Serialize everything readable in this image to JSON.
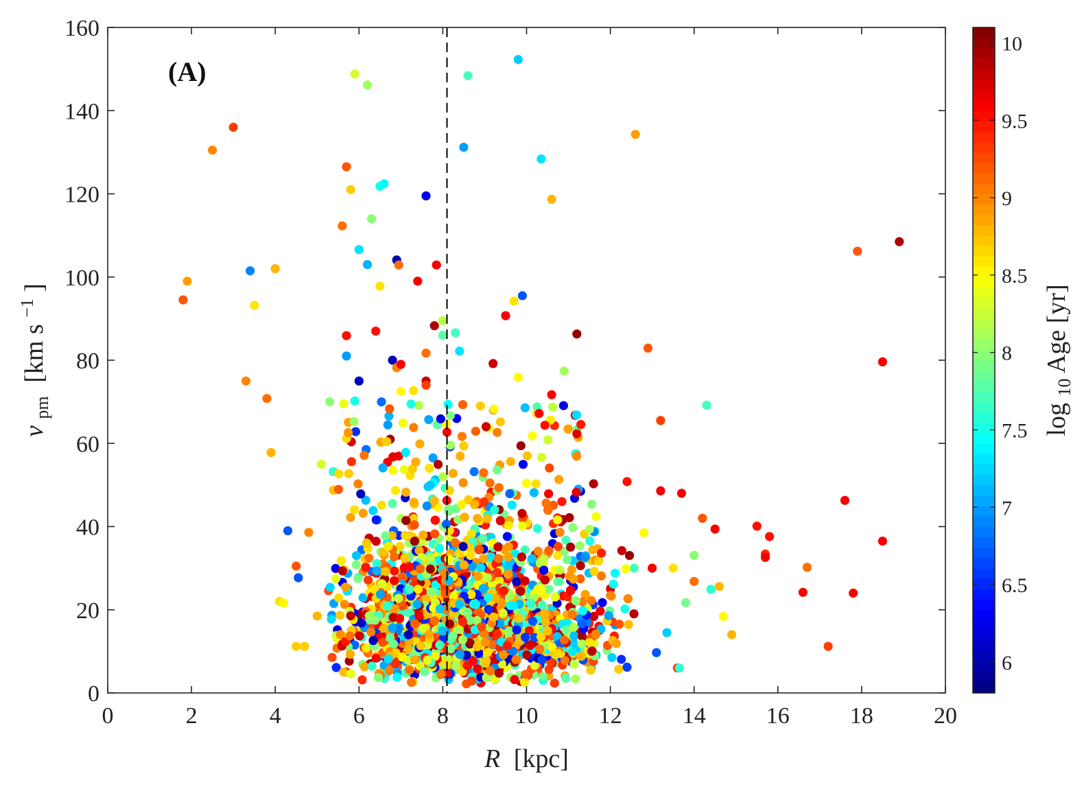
{
  "chart_data": {
    "type": "scatter",
    "panel_label": "(A)",
    "xlabel": {
      "symbol": "R",
      "unit": "[kpc]"
    },
    "ylabel": {
      "symbol": "v",
      "subscript": "pm",
      "unit": "[km s",
      "superscript": "−1",
      "close": "]"
    },
    "colorbar_label": {
      "prefix": "log",
      "subscript": "10",
      "rest": "Age [yr]"
    },
    "xlim": [
      0,
      20
    ],
    "ylim": [
      0,
      160
    ],
    "clim": [
      5.8,
      10.1
    ],
    "xticks": [
      "0",
      "2",
      "4",
      "6",
      "8",
      "10",
      "12",
      "14",
      "16",
      "18",
      "20"
    ],
    "yticks": [
      "0",
      "20",
      "40",
      "60",
      "80",
      "100",
      "120",
      "140",
      "160"
    ],
    "cticks": [
      "6",
      "6.5",
      "7",
      "7.5",
      "8",
      "8.5",
      "9",
      "9.5",
      "10"
    ],
    "reference_line": {
      "x": 8.1,
      "style": "dashed",
      "color": "#000000"
    },
    "colormap": "jet",
    "marker_note": "filled circles colored by log10 Age",
    "points_outliers": [
      [
        1.8,
        94.5,
        9.2
      ],
      [
        1.9,
        99,
        8.9
      ],
      [
        2.5,
        130.5,
        9.0
      ],
      [
        3.0,
        136,
        9.3
      ],
      [
        3.3,
        75,
        9.0
      ],
      [
        3.4,
        101.5,
        6.9
      ],
      [
        3.5,
        93.2,
        8.6
      ],
      [
        3.8,
        70.8,
        9.1
      ],
      [
        3.9,
        57.8,
        8.8
      ],
      [
        4.0,
        102,
        8.8
      ],
      [
        4.3,
        39,
        6.7
      ],
      [
        4.5,
        30.5,
        9.2
      ],
      [
        4.5,
        11.2,
        8.7
      ],
      [
        4.55,
        27.7,
        6.7
      ],
      [
        4.1,
        22,
        8.6
      ],
      [
        4.2,
        21.6,
        8.5
      ],
      [
        4.7,
        11.2,
        8.7
      ],
      [
        4.8,
        38.6,
        9.0
      ],
      [
        5.0,
        18.5,
        8.8
      ],
      [
        5.1,
        55,
        8.3
      ],
      [
        5.3,
        70,
        8.0
      ],
      [
        5.7,
        126.5,
        9.2
      ],
      [
        5.8,
        121,
        8.7
      ],
      [
        5.9,
        148.8,
        8.3
      ],
      [
        6.2,
        146.2,
        8.1
      ],
      [
        6.0,
        106.6,
        7.3
      ],
      [
        6.2,
        103,
        7.1
      ],
      [
        6.3,
        114,
        8.0
      ],
      [
        6.5,
        121.8,
        7.5
      ],
      [
        6.6,
        122.4,
        7.4
      ],
      [
        6.5,
        97.8,
        8.6
      ],
      [
        5.6,
        112.3,
        9.1
      ],
      [
        5.7,
        85.9,
        9.5
      ],
      [
        5.7,
        81,
        7.0
      ],
      [
        5.9,
        70.2,
        7.5
      ],
      [
        6.0,
        75,
        6.1
      ],
      [
        6.4,
        87,
        9.5
      ],
      [
        6.8,
        80,
        6.0
      ],
      [
        6.9,
        104.1,
        6.0
      ],
      [
        6.95,
        102.9,
        9.1
      ],
      [
        6.9,
        78.2,
        9.0
      ],
      [
        7.0,
        79,
        9.6
      ],
      [
        7.0,
        72.5,
        8.5
      ],
      [
        7.3,
        72.7,
        8.6
      ],
      [
        7.4,
        99,
        9.6
      ],
      [
        7.6,
        119.5,
        6.3
      ],
      [
        7.6,
        75,
        9.8
      ],
      [
        7.6,
        74,
        9.3
      ],
      [
        7.6,
        81.7,
        9.1
      ],
      [
        7.8,
        88.3,
        9.9
      ],
      [
        7.85,
        102.9,
        9.6
      ],
      [
        8.0,
        89.5,
        8.2
      ],
      [
        8.0,
        86,
        7.8
      ],
      [
        7.95,
        65.9,
        6.2
      ],
      [
        8.1,
        62.7,
        9.6
      ],
      [
        8.3,
        86.6,
        7.7
      ],
      [
        8.4,
        82.2,
        7.3
      ],
      [
        8.5,
        131.2,
        7.0
      ],
      [
        8.6,
        148.4,
        7.7
      ],
      [
        8.9,
        69,
        8.7
      ],
      [
        9.2,
        79.2,
        9.8
      ],
      [
        9.5,
        90.7,
        9.6
      ],
      [
        9.7,
        94.2,
        8.6
      ],
      [
        9.8,
        152.3,
        7.2
      ],
      [
        9.8,
        75.9,
        8.5
      ],
      [
        9.9,
        95.5,
        6.7
      ],
      [
        10.3,
        67.2,
        9.6
      ],
      [
        10.35,
        128.4,
        7.3
      ],
      [
        10.6,
        118.7,
        8.8
      ],
      [
        10.6,
        71.7,
        9.6
      ],
      [
        10.9,
        77.4,
        8.1
      ],
      [
        11.2,
        86.3,
        10.0
      ],
      [
        11.2,
        62.3,
        9.7
      ],
      [
        12.6,
        134.3,
        8.9
      ],
      [
        12.9,
        82.9,
        9.2
      ],
      [
        13.2,
        65.5,
        9.3
      ],
      [
        14.3,
        69.2,
        7.7
      ],
      [
        11.6,
        50.3,
        9.9
      ],
      [
        12.4,
        50.8,
        9.5
      ],
      [
        13.2,
        48.6,
        9.6
      ],
      [
        13.7,
        48,
        9.6
      ],
      [
        14.2,
        42,
        9.2
      ],
      [
        14.5,
        39.4,
        9.6
      ],
      [
        15.5,
        40.1,
        9.5
      ],
      [
        15.8,
        37.6,
        9.5
      ],
      [
        15.7,
        33.4,
        9.4
      ],
      [
        15.7,
        32.6,
        9.6
      ],
      [
        16.7,
        30.2,
        9.1
      ],
      [
        16.6,
        24.2,
        9.6
      ],
      [
        17.2,
        11.2,
        9.3
      ],
      [
        17.6,
        46.3,
        9.6
      ],
      [
        17.8,
        24,
        9.6
      ],
      [
        17.9,
        106.2,
        9.2
      ],
      [
        18.5,
        79.6,
        9.6
      ],
      [
        18.5,
        36.5,
        9.6
      ],
      [
        18.9,
        108.5,
        9.9
      ],
      [
        14.9,
        14,
        8.8
      ],
      [
        14.7,
        18.4,
        8.5
      ],
      [
        14.6,
        25.6,
        8.8
      ],
      [
        14.0,
        26.8,
        9.1
      ],
      [
        13.6,
        6,
        9.3
      ],
      [
        13.65,
        6,
        7.6
      ],
      [
        13.35,
        14.5,
        7.2
      ],
      [
        13.1,
        9.7,
        6.7
      ],
      [
        12.4,
        6.2,
        6.6
      ],
      [
        14.4,
        24.9,
        7.6
      ],
      [
        13.8,
        21.7,
        7.9
      ],
      [
        13.5,
        30,
        8.6
      ],
      [
        13.0,
        30,
        9.6
      ],
      [
        14.0,
        33.1,
        8.0
      ],
      [
        12.8,
        38.5,
        8.5
      ]
    ]
  }
}
